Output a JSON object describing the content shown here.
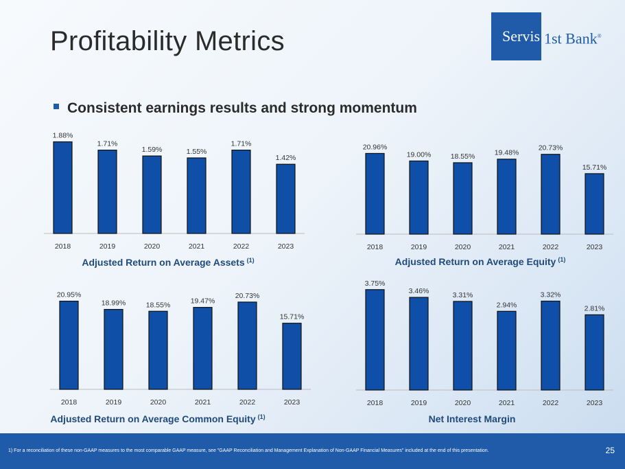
{
  "title": "Profitability Metrics",
  "logo": {
    "boxed": "Servis",
    "rest": "1st Bank",
    "mark": "®"
  },
  "bullet": "Consistent earnings results and strong momentum",
  "footer": {
    "footnote": "1)    For a reconciliation of these non-GAAP measures to the most comparable GAAP measure, see \"GAAP Reconciliation and Management Explanation of Non-GAAP Financial Measures\" included at the end of this presentation.",
    "page": "25"
  },
  "colors": {
    "bar": "#0f4fa8",
    "title": "#1f4a7a",
    "footer": "#1f5ba8"
  },
  "chart_data": [
    {
      "type": "bar",
      "title": "Adjusted Return on Average Assets",
      "title_note": "(1)",
      "categories": [
        "2018",
        "2019",
        "2020",
        "2021",
        "2022",
        "2023"
      ],
      "values": [
        1.88,
        1.71,
        1.59,
        1.55,
        1.71,
        1.42
      ],
      "labels": [
        "1.88%",
        "1.71%",
        "1.59%",
        "1.55%",
        "1.71%",
        "1.42%"
      ],
      "ylim": [
        0,
        2.0
      ]
    },
    {
      "type": "bar",
      "title": "Adjusted Return on Average Equity",
      "title_note": "(1)",
      "categories": [
        "2018",
        "2019",
        "2020",
        "2021",
        "2022",
        "2023"
      ],
      "values": [
        20.96,
        19.0,
        18.55,
        19.48,
        20.73,
        15.71
      ],
      "labels": [
        "20.96%",
        "19.00%",
        "18.55%",
        "19.48%",
        "20.73%",
        "15.71%"
      ],
      "ylim": [
        0,
        23
      ]
    },
    {
      "type": "bar",
      "title": "Adjusted Return on Average Common Equity",
      "title_note": "(1)",
      "categories": [
        "2018",
        "2019",
        "2020",
        "2021",
        "2022",
        "2023"
      ],
      "values": [
        20.95,
        18.99,
        18.55,
        19.47,
        20.73,
        15.71
      ],
      "labels": [
        "20.95%",
        "18.99%",
        "18.55%",
        "19.47%",
        "20.73%",
        "15.71%"
      ],
      "ylim": [
        0,
        23
      ]
    },
    {
      "type": "bar",
      "title": "Net Interest Margin",
      "title_note": "",
      "categories": [
        "2018",
        "2019",
        "2020",
        "2021",
        "2022",
        "2023"
      ],
      "values": [
        3.75,
        3.46,
        3.31,
        2.94,
        3.32,
        2.81
      ],
      "labels": [
        "3.75%",
        "3.46%",
        "3.31%",
        "2.94%",
        "3.32%",
        "2.81%"
      ],
      "ylim": [
        0,
        4.0
      ]
    }
  ]
}
